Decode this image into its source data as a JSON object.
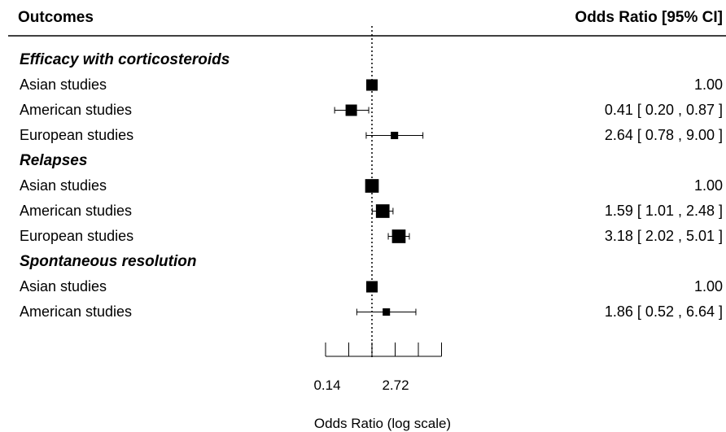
{
  "header": {
    "outcomes_label": "Outcomes",
    "or_label": "Odds Ratio [95% CI]"
  },
  "chart_data": {
    "type": "forest",
    "xlabel": "Odds Ratio (log scale)",
    "x_scale": "log",
    "reference_line": 1.0,
    "tick_labels": [
      "0.14",
      "2.72"
    ],
    "groups": [
      {
        "name": "Efficacy with corticosteroids",
        "rows": [
          {
            "label": "Asian studies",
            "or": 1.0,
            "lo": null,
            "hi": null,
            "text": "1.00",
            "weight": 1.0
          },
          {
            "label": "American studies",
            "or": 0.41,
            "lo": 0.2,
            "hi": 0.87,
            "text": "0.41 [ 0.20 , 0.87 ]",
            "weight": 1.0
          },
          {
            "label": "European studies",
            "or": 2.64,
            "lo": 0.78,
            "hi": 9.0,
            "text": "2.64 [ 0.78 , 9.00 ]",
            "weight": 0.45
          }
        ]
      },
      {
        "name": "Relapses",
        "rows": [
          {
            "label": "Asian studies",
            "or": 1.0,
            "lo": null,
            "hi": null,
            "text": "1.00",
            "weight": 1.3
          },
          {
            "label": "American studies",
            "or": 1.59,
            "lo": 1.01,
            "hi": 2.48,
            "text": "1.59 [ 1.01 , 2.48 ]",
            "weight": 1.3
          },
          {
            "label": "European studies",
            "or": 3.18,
            "lo": 2.02,
            "hi": 5.01,
            "text": "3.18 [ 2.02 , 5.01 ]",
            "weight": 1.3
          }
        ]
      },
      {
        "name": "Spontaneous resolution",
        "rows": [
          {
            "label": "Asian studies",
            "or": 1.0,
            "lo": null,
            "hi": null,
            "text": "1.00",
            "weight": 1.0
          },
          {
            "label": "American studies",
            "or": 1.86,
            "lo": 0.52,
            "hi": 6.64,
            "text": "1.86 [ 0.52 , 6.64 ]",
            "weight": 0.45
          }
        ]
      }
    ]
  }
}
